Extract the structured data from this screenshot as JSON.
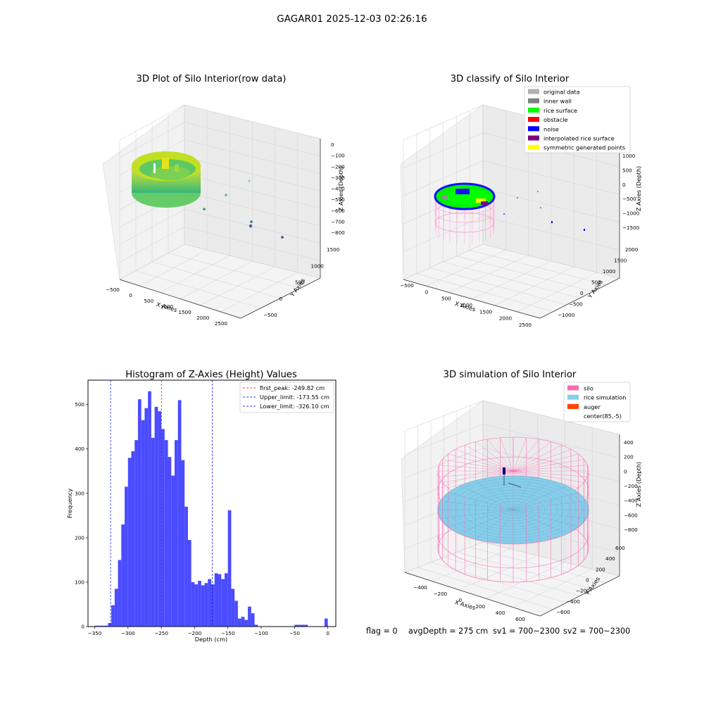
{
  "figure": {
    "suptitle": "GAGAR01 2025-12-03 02:26:16",
    "status": {
      "flag": "flag = 0",
      "avg_depth": "avgDepth = 275 cm",
      "sv1": "sv1 = 700~2300",
      "sv2": "sv2 = 700~2300"
    }
  },
  "chart_data": [
    {
      "type": "scatter",
      "projection": "3d",
      "title": "3D Plot of Silo Interior(row data)",
      "xlabel": "X Axies",
      "ylabel": "Y Axies",
      "zlabel": "Z Axies (Depth)",
      "x_ticks": [
        "−500",
        "0",
        "500",
        "1000",
        "1500",
        "2000",
        "2500"
      ],
      "y_ticks": [
        "−500",
        "0",
        "500",
        "1000",
        "1500"
      ],
      "z_ticks": [
        "0",
        "−100",
        "−200",
        "−300",
        "−400",
        "−500",
        "−600",
        "−700",
        "−800"
      ],
      "colormap": [
        "#440154",
        "#31688e",
        "#35b779",
        "#fde725"
      ],
      "description_series": "dense point cloud of silo interior near x 0–600, y 0–600, z −150 to −400, with sparse outlier points extending toward x 2000, y −500 and z −800",
      "grid": true
    },
    {
      "type": "scatter",
      "projection": "3d",
      "title": "3D classify of Silo Interior",
      "xlabel": "X Axies",
      "ylabel": "Y Axies",
      "zlabel": "Z Axies (Depth)",
      "x_ticks": [
        "−500",
        "0",
        "500",
        "1000",
        "1500",
        "2000",
        "2500"
      ],
      "y_ticks": [
        "−1000",
        "−500",
        "0",
        "500",
        "1000",
        "1500",
        "2000"
      ],
      "z_ticks": [
        "1000",
        "500",
        "0",
        "−500",
        "−1000",
        "−1500"
      ],
      "legend": [
        {
          "label": "original data",
          "color": "#b0b0b0"
        },
        {
          "label": "inner wall",
          "color": "#808080"
        },
        {
          "label": "rice surface",
          "color": "#00ff00"
        },
        {
          "label": "obstacle",
          "color": "#ff0000"
        },
        {
          "label": "noise",
          "color": "#0000ff"
        },
        {
          "label": "interpolated rice surface",
          "color": "#800080"
        },
        {
          "label": "symmetric generated points",
          "color": "#ffff00"
        }
      ],
      "legend_position": "upper right",
      "grid": true
    },
    {
      "type": "bar",
      "title": "Histogram of Z-Axies (Height) Values",
      "xlabel": "Depth (cm)",
      "ylabel": "Frequency",
      "bar_color": "#4b4bff",
      "bin_width": 5,
      "bins_start": [
        -355,
        -350,
        -345,
        -340,
        -335,
        -330,
        -325,
        -320,
        -315,
        -310,
        -305,
        -300,
        -295,
        -290,
        -285,
        -280,
        -275,
        -270,
        -265,
        -260,
        -255,
        -250,
        -245,
        -240,
        -235,
        -230,
        -225,
        -220,
        -215,
        -210,
        -205,
        -200,
        -195,
        -190,
        -185,
        -180,
        -175,
        -170,
        -165,
        -160,
        -155,
        -150,
        -145,
        -140,
        -135,
        -130,
        -125,
        -120,
        -115,
        -110,
        -105,
        -100,
        -95,
        -90,
        -85,
        -80,
        -75,
        -70,
        -65,
        -60,
        -55,
        -50,
        -45,
        -40,
        -35,
        -30,
        -25,
        -20,
        -15,
        -10,
        -5,
        0
      ],
      "values": [
        0,
        2,
        2,
        2,
        2,
        8,
        48,
        85,
        150,
        230,
        315,
        380,
        395,
        420,
        512,
        465,
        492,
        530,
        425,
        495,
        485,
        445,
        420,
        382,
        340,
        420,
        510,
        375,
        270,
        195,
        100,
        95,
        103,
        93,
        98,
        107,
        95,
        120,
        118,
        107,
        120,
        262,
        85,
        58,
        18,
        22,
        15,
        45,
        30,
        4,
        0,
        0,
        0,
        0,
        0,
        0,
        0,
        0,
        0,
        0,
        0,
        0,
        0,
        0,
        0,
        0,
        0,
        0,
        0,
        0,
        0,
        0
      ],
      "values_note": "",
      "xlim": [
        -360,
        12
      ],
      "ylim": [
        0,
        555
      ],
      "x_ticks": [
        -350,
        -300,
        -250,
        -200,
        -150,
        -100,
        -50,
        0
      ],
      "x_tick_labels": [
        "−350",
        "−300",
        "−250",
        "−200",
        "−150",
        "−100",
        "−50",
        "0"
      ],
      "y_ticks": [
        0,
        100,
        200,
        300,
        400,
        500
      ],
      "vlines": [
        {
          "label": "first_peak: -249.82 cm",
          "x": -249.82,
          "color": "#ff0000"
        },
        {
          "label": "Upper_limit: -173.55 cm",
          "x": -173.55,
          "color": "#0000ff"
        },
        {
          "label": "Lower_limit: -326.10 cm",
          "x": -326.1,
          "color": "#0000ff"
        }
      ],
      "legend_position": "upper right",
      "grid": false
    },
    {
      "type": "scatter",
      "projection": "3d",
      "title": "3D simulation of Silo Interior",
      "xlabel": "X Axies",
      "ylabel": "Y Axies",
      "zlabel": "Z Axies (Depth)",
      "x_ticks": [
        "−400",
        "−200",
        "0",
        "200",
        "400",
        "600"
      ],
      "y_ticks": [
        "−600",
        "−400",
        "−200",
        "0",
        "200",
        "400",
        "600"
      ],
      "z_ticks": [
        "400",
        "200",
        "0",
        "−200",
        "−400",
        "−600",
        "−800"
      ],
      "legend": [
        {
          "label": "silo",
          "color": "#ff69b4"
        },
        {
          "label": "rice simulation",
          "color": "#87ceeb"
        },
        {
          "label": "auger",
          "color": "#ff4500"
        },
        {
          "label": "center(85,-5)",
          "color": ""
        }
      ],
      "legend_position": "upper right",
      "grid": true
    }
  ]
}
